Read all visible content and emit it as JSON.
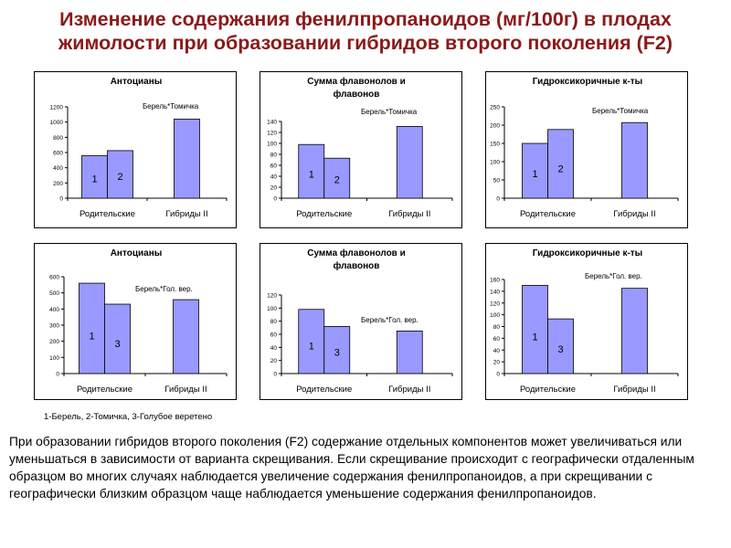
{
  "title": {
    "line1": "Изменение содержания фенилпропаноидов (мг/100г) в плодах",
    "line2": "жимолости при образовании гибридов второго поколения (F2)"
  },
  "colors": {
    "bar_fill": "#9999ff",
    "bar_stroke": "#000000",
    "title": "#8b1a1a"
  },
  "footnote": "1-Берель, 2-Томичка, 3-Голубое веретено",
  "description": "При образовании гибридов второго поколения (F2) содержание отдельных компонентов может увеличиваться или уменьшаться в зависимости от варианта скрещивания. Если скрещивание происходит с географически отдаленным образцом во многих случаях наблюдается увеличение содержания фенилпропаноидов, а при скрещивании с географически близким образцом чаще наблюдается уменьшение содержания фенилпропаноидов.",
  "chart_data": [
    {
      "type": "bar",
      "title": [
        "Антоцианы"
      ],
      "annotation": "Берель*Томичка",
      "categories": [
        "Родительские",
        "Гибриды II"
      ],
      "ylim": [
        0,
        1200
      ],
      "yticks": [
        0,
        200,
        400,
        600,
        800,
        1000,
        1200
      ],
      "bars": [
        {
          "group": "Родительские",
          "label": "1",
          "value": 560
        },
        {
          "group": "Родительские",
          "label": "2",
          "value": 625
        },
        {
          "group": "Гибриды II",
          "label": "",
          "value": 1040
        }
      ]
    },
    {
      "type": "bar",
      "title": [
        "Сумма флавонолов и",
        "флавонов"
      ],
      "annotation": "Берель*Томичка",
      "categories": [
        "Родительские",
        "Гибриды II"
      ],
      "ylim": [
        0,
        140
      ],
      "yticks": [
        0,
        20,
        40,
        60,
        80,
        100,
        120,
        140
      ],
      "bars": [
        {
          "group": "Родительские",
          "label": "1",
          "value": 98
        },
        {
          "group": "Родительские",
          "label": "2",
          "value": 73
        },
        {
          "group": "Гибриды II",
          "label": "",
          "value": 131
        }
      ]
    },
    {
      "type": "bar",
      "title": [
        "Гидроксикоричные к-ты"
      ],
      "annotation": "Берель*Томичка",
      "categories": [
        "Родительские",
        "Гибриды II"
      ],
      "ylim": [
        0,
        250
      ],
      "yticks": [
        0,
        50,
        100,
        150,
        200,
        250
      ],
      "bars": [
        {
          "group": "Родительские",
          "label": "1",
          "value": 150
        },
        {
          "group": "Родительские",
          "label": "2",
          "value": 188
        },
        {
          "group": "Гибриды II",
          "label": "",
          "value": 207
        }
      ]
    },
    {
      "type": "bar",
      "title": [
        "Антоцианы"
      ],
      "annotation": "Берель*Гол. вер.",
      "categories": [
        "Родительские",
        "Гибриды II"
      ],
      "ylim": [
        0,
        600
      ],
      "yticks": [
        0,
        100,
        200,
        300,
        400,
        500,
        600
      ],
      "bars": [
        {
          "group": "Родительские",
          "label": "1",
          "value": 560
        },
        {
          "group": "Родительские",
          "label": "3",
          "value": 430
        },
        {
          "group": "Гибриды II",
          "label": "",
          "value": 458
        }
      ]
    },
    {
      "type": "bar",
      "title": [
        "Сумма флавонолов и",
        "флавонов"
      ],
      "annotation": "Берель*Гол. вер.",
      "categories": [
        "Родительские",
        "Гибриды II"
      ],
      "ylim": [
        0,
        120
      ],
      "yticks": [
        0,
        20,
        40,
        60,
        80,
        100,
        120
      ],
      "bars": [
        {
          "group": "Родительские",
          "label": "1",
          "value": 98
        },
        {
          "group": "Родительские",
          "label": "3",
          "value": 72
        },
        {
          "group": "Гибриды II",
          "label": "",
          "value": 65
        }
      ]
    },
    {
      "type": "bar",
      "title": [
        "Гидроксикоричные к-ты"
      ],
      "annotation": "Берель*Гол. вер.",
      "categories": [
        "Родительские",
        "Гибриды II"
      ],
      "ylim": [
        0,
        160
      ],
      "yticks": [
        0,
        20,
        40,
        60,
        80,
        100,
        120,
        140,
        160
      ],
      "bars": [
        {
          "group": "Родительские",
          "label": "1",
          "value": 150
        },
        {
          "group": "Родительские",
          "label": "3",
          "value": 93
        },
        {
          "group": "Гибриды II",
          "label": "",
          "value": 145
        }
      ]
    }
  ]
}
